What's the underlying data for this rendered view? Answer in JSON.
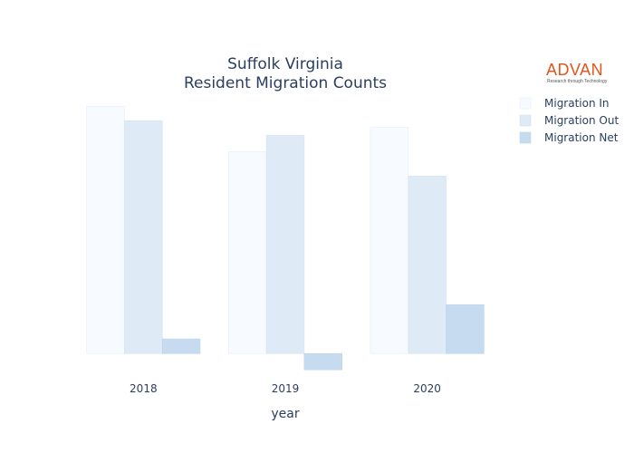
{
  "logo": {
    "brand": "ADVAN",
    "tagline": "Research through Technology",
    "color": "#e0561b"
  },
  "chart_data": {
    "type": "bar",
    "title": [
      "Suffolk Virginia",
      "Resident Migration Counts"
    ],
    "xlabel": "year",
    "ylabel": "",
    "categories": [
      "2018",
      "2019",
      "2020"
    ],
    "series": [
      {
        "name": "Migration In",
        "values": [
          15200,
          12400,
          13900
        ],
        "color": "#f7fbff",
        "stroke": "#e3eef9"
      },
      {
        "name": "Migration Out",
        "values": [
          14300,
          13400,
          10900
        ],
        "color": "#deebf7",
        "stroke": "#d2e3f3"
      },
      {
        "name": "Migration Net",
        "values": [
          900,
          -1000,
          3000
        ],
        "color": "#c6dbef",
        "stroke": "#bcd4ea"
      }
    ],
    "ylim": [
      -1100,
      15600
    ],
    "grid": false,
    "yaxis_visible": false,
    "legend_position": "top-right"
  }
}
